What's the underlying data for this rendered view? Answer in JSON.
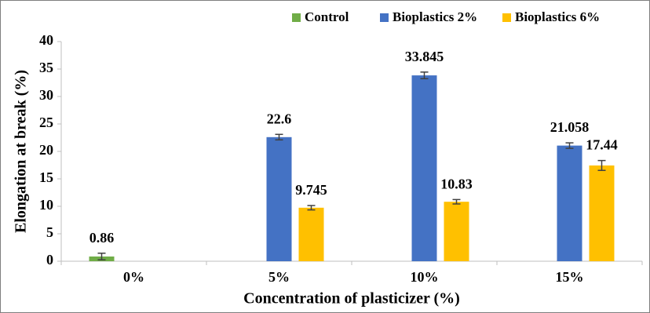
{
  "chart_data": {
    "type": "bar",
    "x_label": "Concentration of plasticizer (%)",
    "y_label": "Elongation at break (%)",
    "categories": [
      "0%",
      "5%",
      "10%",
      "15%"
    ],
    "series": [
      {
        "name": "Control",
        "color": "#70ad47",
        "values": [
          0.86,
          null,
          null,
          null
        ],
        "errors": [
          0.6,
          null,
          null,
          null
        ]
      },
      {
        "name": "Bioplastics 2%",
        "color": "#4472c4",
        "values": [
          null,
          22.6,
          33.845,
          21.058
        ],
        "errors": [
          null,
          0.5,
          0.6,
          0.5
        ]
      },
      {
        "name": "Bioplastics 6%",
        "color": "#ffc000",
        "values": [
          null,
          9.745,
          10.83,
          17.44
        ],
        "errors": [
          null,
          0.4,
          0.4,
          0.9
        ]
      }
    ],
    "ylim": [
      0,
      40
    ],
    "yticks": [
      0,
      5,
      10,
      15,
      20,
      25,
      30,
      35,
      40
    ],
    "grid": false,
    "legend": "top-right",
    "error_color": "#404040"
  }
}
